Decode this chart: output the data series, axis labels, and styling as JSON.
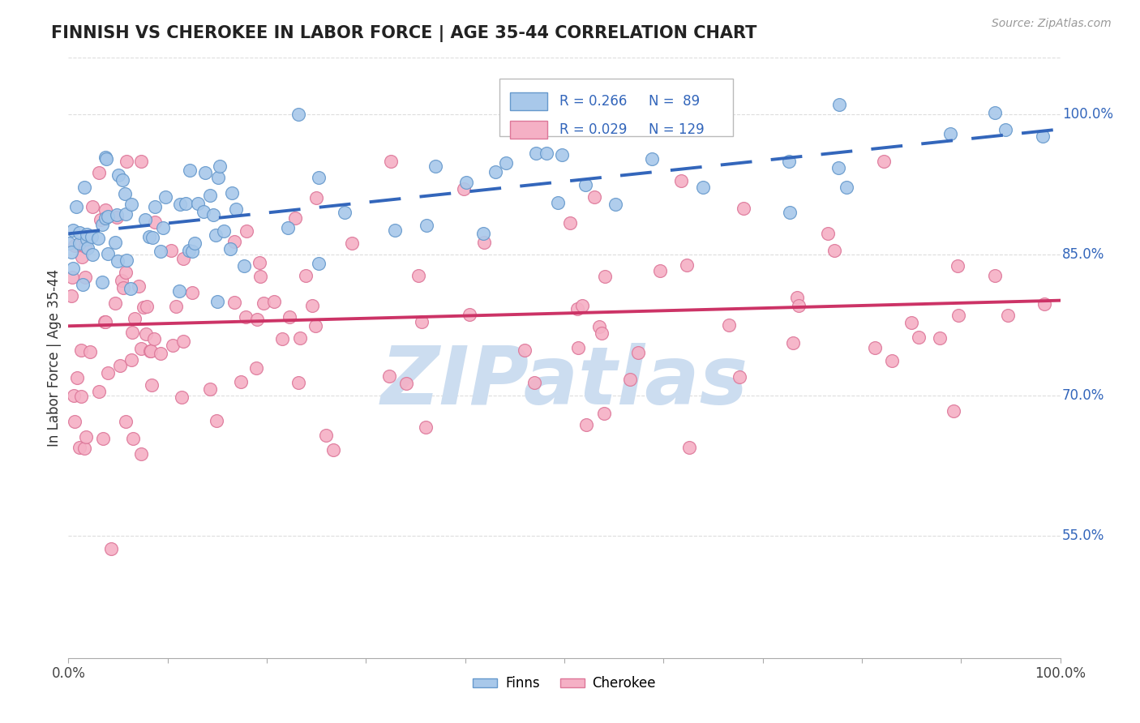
{
  "title": "FINNISH VS CHEROKEE IN LABOR FORCE | AGE 35-44 CORRELATION CHART",
  "source": "Source: ZipAtlas.com",
  "ylabel": "In Labor Force | Age 35-44",
  "yticks": [
    "55.0%",
    "70.0%",
    "85.0%",
    "100.0%"
  ],
  "ytick_values": [
    0.55,
    0.7,
    0.85,
    1.0
  ],
  "xlim": [
    0.0,
    1.0
  ],
  "ylim": [
    0.42,
    1.06
  ],
  "finn_color": "#a8c8ea",
  "finn_edge": "#6699cc",
  "cherokee_color": "#f5b0c5",
  "cherokee_edge": "#dd7799",
  "finn_line_color": "#3366bb",
  "cherokee_line_color": "#cc3366",
  "watermark_color": "#ccddf0",
  "background_color": "#ffffff",
  "grid_color": "#dddddd",
  "legend_text_color": "#3366bb",
  "legend_box_color": "#eeeeee"
}
